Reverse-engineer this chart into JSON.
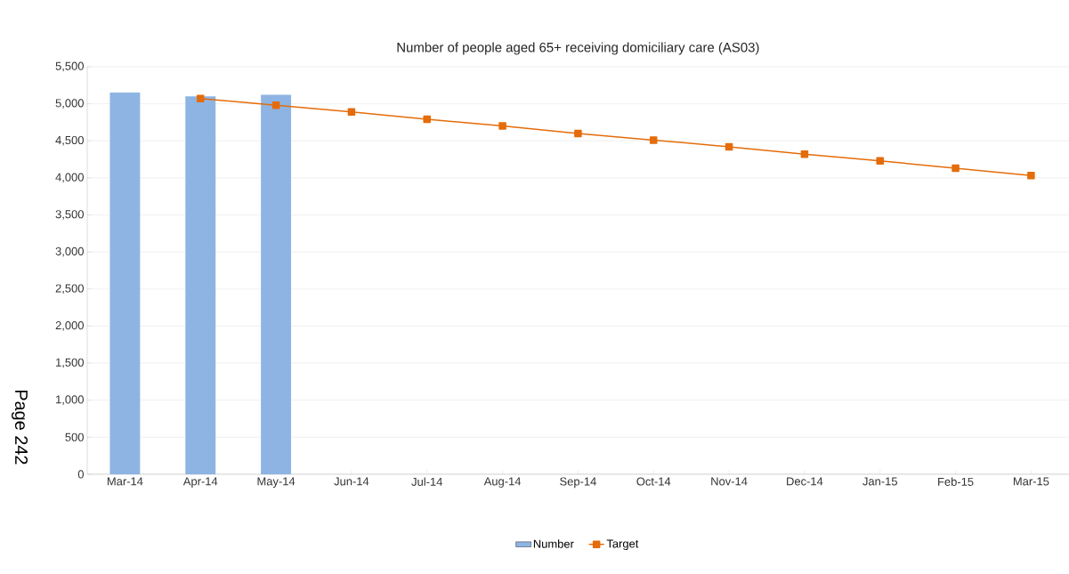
{
  "chart_data": {
    "type": "bar",
    "title": "Number of people aged 65+  receiving domiciliary care (AS03)",
    "categories": [
      "Mar-14",
      "Apr-14",
      "May-14",
      "Jun-14",
      "Jul-14",
      "Aug-14",
      "Sep-14",
      "Oct-14",
      "Nov-14",
      "Dec-14",
      "Jan-15",
      "Feb-15",
      "Mar-15"
    ],
    "series": [
      {
        "name": "Number",
        "color": "#8eb4e3",
        "values": [
          5150,
          5100,
          5120,
          null,
          null,
          null,
          null,
          null,
          null,
          null,
          null,
          null,
          null
        ]
      },
      {
        "name": "Target",
        "type": "line",
        "color": "#e46c0a",
        "marker": "square",
        "line_style": "solid",
        "values": [
          null,
          5070,
          4980,
          4890,
          4790,
          4700,
          4600,
          4510,
          4420,
          4320,
          4230,
          4130,
          4030
        ]
      }
    ],
    "ylim": [
      0,
      5500
    ],
    "yticks": [
      {
        "value": 0,
        "label": "0"
      },
      {
        "value": 500,
        "label": "500"
      },
      {
        "value": 1000,
        "label": "1,000"
      },
      {
        "value": 1500,
        "label": "1,500"
      },
      {
        "value": 2000,
        "label": "2,000"
      },
      {
        "value": 2500,
        "label": "2,500"
      },
      {
        "value": 3000,
        "label": "3,000"
      },
      {
        "value": 3500,
        "label": "3,500"
      },
      {
        "value": 4000,
        "label": "4,000"
      },
      {
        "value": 4500,
        "label": "4,500"
      },
      {
        "value": 5000,
        "label": "5,000"
      },
      {
        "value": 5500,
        "label": "5,500"
      }
    ],
    "grid": "y",
    "legend": "bottom",
    "annotations": [
      "Page 242"
    ]
  }
}
